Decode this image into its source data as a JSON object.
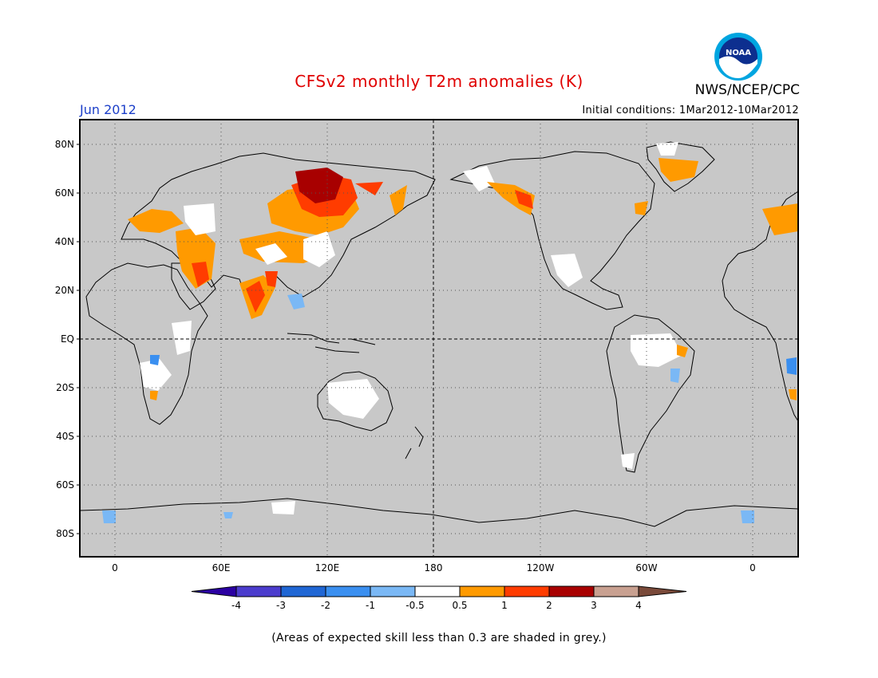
{
  "header": {
    "title": "CFSv2 monthly T2m anomalies (K)",
    "agency": "NWS/NCEP/CPC",
    "logo_text": "NOAA",
    "month": "Jun 2012",
    "initial_conditions": "Initial conditions: 1Mar2012-10Mar2012"
  },
  "map": {
    "lat_labels": [
      "80N",
      "60N",
      "40N",
      "20N",
      "EQ",
      "20S",
      "40S",
      "60S",
      "80S"
    ],
    "lon_labels": [
      "0",
      "60E",
      "120E",
      "180",
      "120W",
      "60W",
      "0"
    ],
    "skill_mask_color": "#c8c8c8",
    "frame_color": "#000000"
  },
  "colorbar": {
    "tick_labels": [
      "-4",
      "-3",
      "-2",
      "-1",
      "-0.5",
      "0.5",
      "1",
      "2",
      "3",
      "4"
    ],
    "colors": [
      "#2b00a2",
      "#4b3ccd",
      "#1f66d4",
      "#3a8ff0",
      "#7ab8f5",
      "#ffffff",
      "#ff9a00",
      "#ff3c00",
      "#a80000",
      "#c8a090",
      "#7a4a3a"
    ]
  },
  "footnote": "(Areas of expected skill less than 0.3 are shaded in grey.)"
}
